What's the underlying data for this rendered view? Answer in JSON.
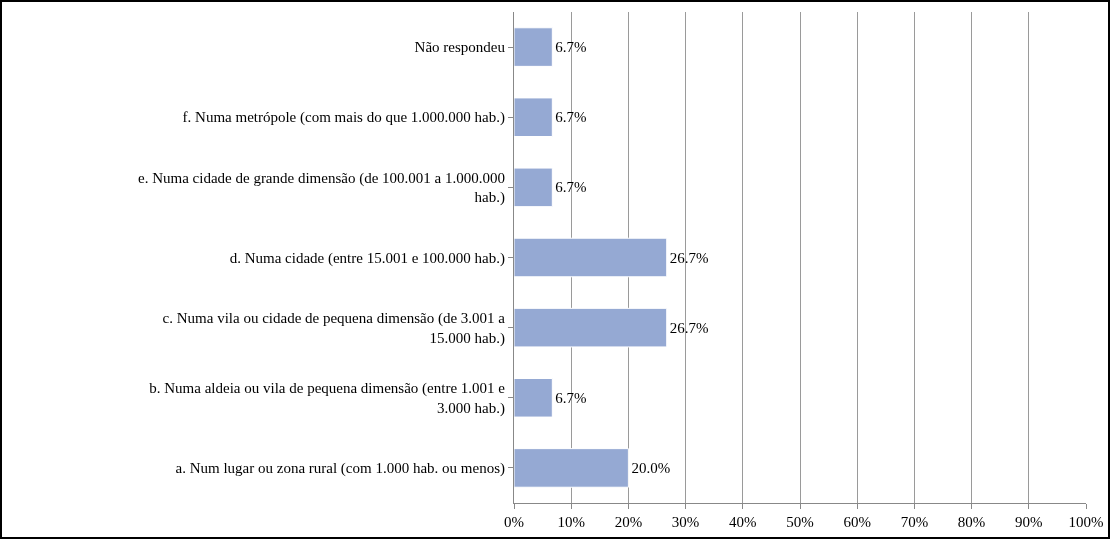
{
  "chart_data": {
    "type": "bar",
    "orientation": "horizontal",
    "categories": [
      "Não respondeu",
      "f. Numa metrópole (com mais do que 1.000.000 hab.)",
      "e. Numa cidade de grande dimensão (de 100.001 a 1.000.000 hab.)",
      "d. Numa cidade (entre 15.001 e 100.000 hab.)",
      "c. Numa vila ou cidade de pequena dimensão (de 3.001 a 15.000 hab.)",
      "b. Numa aldeia ou vila de pequena dimensão (entre 1.001 e 3.000 hab.)",
      "a. Num lugar ou zona rural (com 1.000 hab. ou menos)"
    ],
    "values": [
      6.7,
      6.7,
      6.7,
      26.7,
      26.7,
      6.7,
      20.0
    ],
    "value_labels": [
      "6.7%",
      "6.7%",
      "6.7%",
      "26.7%",
      "26.7%",
      "6.7%",
      "20.0%"
    ],
    "color": "#95a9d3",
    "xlim": [
      0,
      100
    ],
    "xticks": [
      {
        "value": 0,
        "label": "0%"
      },
      {
        "value": 10,
        "label": "10%"
      },
      {
        "value": 20,
        "label": "20%"
      },
      {
        "value": 30,
        "label": "30%"
      },
      {
        "value": 40,
        "label": "40%"
      },
      {
        "value": 50,
        "label": "50%"
      },
      {
        "value": 60,
        "label": "60%"
      },
      {
        "value": 70,
        "label": "70%"
      },
      {
        "value": 80,
        "label": "80%"
      },
      {
        "value": 90,
        "label": "90%"
      },
      {
        "value": 100,
        "label": "100%"
      }
    ],
    "grid": "x",
    "legend": false
  }
}
